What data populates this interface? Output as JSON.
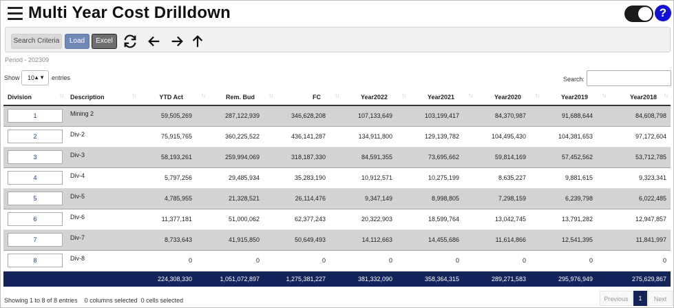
{
  "header": {
    "title": "Multi Year Cost Drilldown",
    "help_label": "?"
  },
  "toolbar": {
    "search_criteria_label": "Search Criteria",
    "load_label": "Load",
    "excel_label": "Excel",
    "icons": [
      "refresh-icon",
      "arrow-left-icon",
      "arrow-right-icon",
      "arrow-up-icon"
    ]
  },
  "period_text": "Period - 202309",
  "length": {
    "show_label": "Show",
    "value": "10",
    "entries_label": "entries"
  },
  "search": {
    "label": "Search:",
    "value": ""
  },
  "table": {
    "columns": [
      "Division",
      "Description",
      "YTD Act",
      "Rem. Bud",
      "FC",
      "Year2022",
      "Year2021",
      "Year2020",
      "Year2019",
      "Year2018"
    ],
    "rows": [
      [
        "1",
        "Mining 2",
        "59,505,269",
        "287,122,939",
        "346,628,208",
        "107,133,649",
        "103,199,417",
        "84,370,987",
        "91,688,644",
        "84,608,798"
      ],
      [
        "2",
        "Div-2",
        "75,915,765",
        "360,225,522",
        "436,141,287",
        "134,911,800",
        "129,139,782",
        "104,495,430",
        "104,381,653",
        "97,172,604"
      ],
      [
        "3",
        "Div-3",
        "58,193,261",
        "259,994,069",
        "318,187,330",
        "84,591,355",
        "73,695,662",
        "59,814,169",
        "57,452,562",
        "53,712,785"
      ],
      [
        "4",
        "Div-4",
        "5,797,256",
        "29,485,934",
        "35,283,190",
        "10,912,571",
        "10,275,199",
        "8,635,227",
        "9,881,615",
        "9,323,341"
      ],
      [
        "5",
        "Div-5",
        "4,785,955",
        "21,328,521",
        "26,114,476",
        "9,347,149",
        "8,998,805",
        "7,298,159",
        "6,239,798",
        "6,022,485"
      ],
      [
        "6",
        "Div-6",
        "11,377,181",
        "51,000,062",
        "62,377,243",
        "20,322,903",
        "18,599,764",
        "13,042,745",
        "13,791,282",
        "12,947,857"
      ],
      [
        "7",
        "Div-7",
        "8,733,643",
        "41,915,850",
        "50,649,493",
        "14,112,663",
        "14,455,686",
        "11,614,866",
        "12,541,395",
        "11,841,997"
      ],
      [
        "8",
        "Div-8",
        "0",
        "0",
        "0",
        "0",
        "0",
        "0",
        "0",
        "0"
      ]
    ],
    "totals": [
      "",
      "",
      "224,308,330",
      "1,051,072,897",
      "1,275,381,227",
      "381,332,090",
      "358,364,315",
      "289,271,583",
      "295,976,949",
      "275,629,867"
    ]
  },
  "info": {
    "summary": "Showing 1 to 8 of 8 entries",
    "columns_selected": "0 columns selected",
    "cells_selected": "0 cells selected"
  },
  "pagination": {
    "previous": "Previous",
    "current": "1",
    "next": "Next"
  },
  "colors": {
    "footer_bg": "#12245a",
    "help_bg": "#1212d6",
    "load_btn": "#6f88b8",
    "excel_btn": "#6f6f6f",
    "odd_row": "#d3d3d3"
  }
}
